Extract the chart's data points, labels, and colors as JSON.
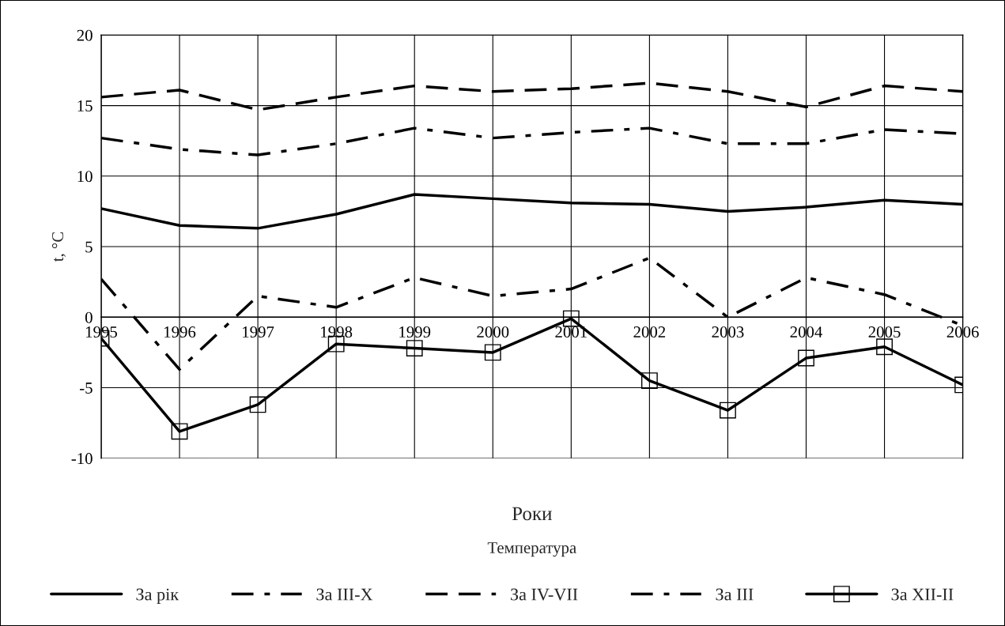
{
  "chart_data": {
    "type": "line",
    "title": "Температура",
    "xlabel": "Роки",
    "ylabel": "t, °C",
    "categories": [
      "1995",
      "1996",
      "1997",
      "1998",
      "1999",
      "2000",
      "2001",
      "2002",
      "2003",
      "2004",
      "2005",
      "2006"
    ],
    "series": [
      {
        "name": "За рік",
        "color": "#000000",
        "line_style": "solid",
        "values": [
          7.7,
          6.5,
          6.3,
          7.3,
          8.7,
          8.4,
          8.1,
          8.0,
          7.5,
          7.8,
          8.3,
          8.0
        ]
      },
      {
        "name": "За III-X",
        "color": "#000000",
        "line_style": "dashdot",
        "values": [
          12.7,
          11.9,
          11.5,
          12.3,
          13.4,
          12.7,
          13.1,
          13.4,
          12.3,
          12.3,
          13.3,
          13.0
        ]
      },
      {
        "name": "За IV-VII",
        "color": "#000000",
        "line_style": "dashed",
        "values": [
          15.6,
          16.1,
          14.7,
          15.6,
          16.4,
          16.0,
          16.2,
          16.6,
          16.0,
          14.9,
          16.4,
          16.0
        ]
      },
      {
        "name": "За III",
        "color": "#000000",
        "line_style": "dashdot",
        "values": [
          2.7,
          -3.7,
          1.5,
          0.7,
          2.8,
          1.5,
          2.0,
          4.2,
          0.0,
          2.8,
          1.6,
          -0.6
        ]
      },
      {
        "name": "За XII-II",
        "color": "#000000",
        "line_style": "solid",
        "marker": "square",
        "values": [
          -1.5,
          -8.1,
          -6.2,
          -1.9,
          -2.2,
          -2.5,
          -0.1,
          -4.5,
          -6.6,
          -2.9,
          -2.1,
          -4.8
        ]
      }
    ],
    "ylim": [
      -10,
      20
    ],
    "yticks": [
      -10,
      -5,
      0,
      5,
      10,
      15,
      20
    ],
    "grid": true,
    "legend": "bottom"
  }
}
